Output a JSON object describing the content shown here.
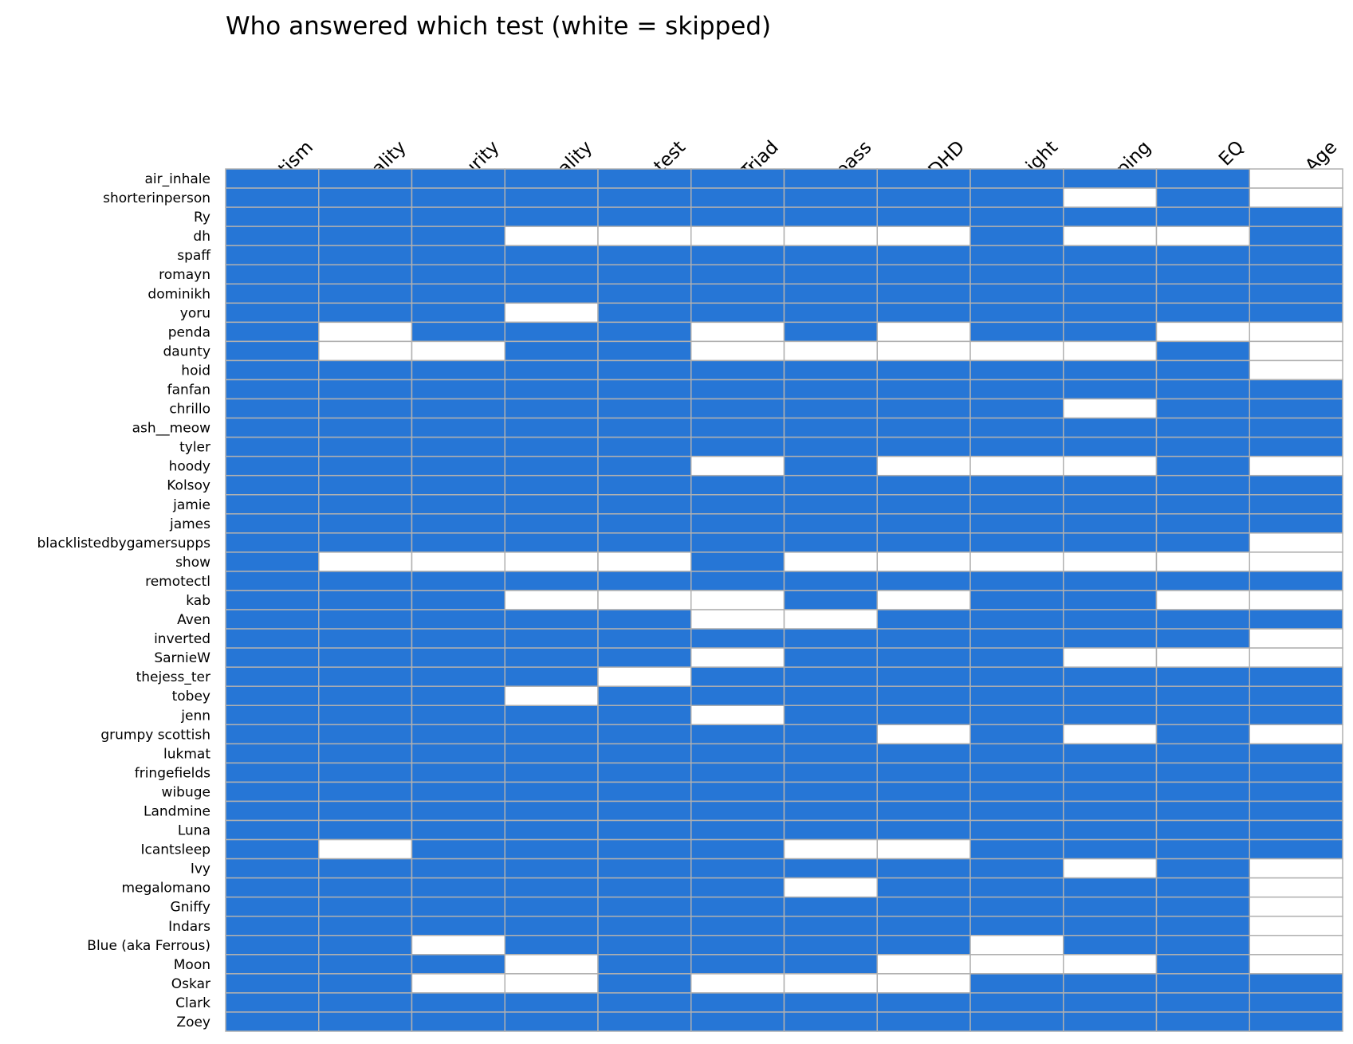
{
  "chart_data": {
    "type": "heatmap",
    "title": "Who answered which test (white = skipped)",
    "xlabel": "",
    "ylabel": "",
    "legend": "none",
    "grid": true,
    "colors": {
      "answered": "#2676d6",
      "skipped": "#ffffff",
      "grid": "#b0b0b0"
    },
    "columns": [
      "Autism",
      "Personality",
      "Rice purity",
      "Sexuality",
      "Racism test",
      "Dark Triad",
      "Pol. compass",
      "ADHD",
      "Height",
      "Typing",
      "EQ",
      "Age"
    ],
    "rows": [
      {
        "name": "air_inhale",
        "values": [
          1,
          1,
          1,
          1,
          1,
          1,
          1,
          1,
          1,
          1,
          1,
          0
        ]
      },
      {
        "name": "shorterinperson",
        "values": [
          1,
          1,
          1,
          1,
          1,
          1,
          1,
          1,
          1,
          0,
          1,
          0
        ]
      },
      {
        "name": "Ry",
        "values": [
          1,
          1,
          1,
          1,
          1,
          1,
          1,
          1,
          1,
          1,
          1,
          1
        ]
      },
      {
        "name": "dh",
        "values": [
          1,
          1,
          1,
          0,
          0,
          0,
          0,
          0,
          1,
          0,
          0,
          1
        ]
      },
      {
        "name": "spaff",
        "values": [
          1,
          1,
          1,
          1,
          1,
          1,
          1,
          1,
          1,
          1,
          1,
          1
        ]
      },
      {
        "name": "romayn",
        "values": [
          1,
          1,
          1,
          1,
          1,
          1,
          1,
          1,
          1,
          1,
          1,
          1
        ]
      },
      {
        "name": "dominikh",
        "values": [
          1,
          1,
          1,
          1,
          1,
          1,
          1,
          1,
          1,
          1,
          1,
          1
        ]
      },
      {
        "name": "yoru",
        "values": [
          1,
          1,
          1,
          0,
          1,
          1,
          1,
          1,
          1,
          1,
          1,
          1
        ]
      },
      {
        "name": "penda",
        "values": [
          1,
          0,
          1,
          1,
          1,
          0,
          1,
          0,
          1,
          1,
          0,
          0
        ]
      },
      {
        "name": "daunty",
        "values": [
          1,
          0,
          0,
          1,
          1,
          0,
          0,
          0,
          0,
          0,
          1,
          0
        ]
      },
      {
        "name": "hoid",
        "values": [
          1,
          1,
          1,
          1,
          1,
          1,
          1,
          1,
          1,
          1,
          1,
          0
        ]
      },
      {
        "name": "fanfan",
        "values": [
          1,
          1,
          1,
          1,
          1,
          1,
          1,
          1,
          1,
          1,
          1,
          1
        ]
      },
      {
        "name": "chrillo",
        "values": [
          1,
          1,
          1,
          1,
          1,
          1,
          1,
          1,
          1,
          0,
          1,
          1
        ]
      },
      {
        "name": "ash__meow",
        "values": [
          1,
          1,
          1,
          1,
          1,
          1,
          1,
          1,
          1,
          1,
          1,
          1
        ]
      },
      {
        "name": "tyler",
        "values": [
          1,
          1,
          1,
          1,
          1,
          1,
          1,
          1,
          1,
          1,
          1,
          1
        ]
      },
      {
        "name": "hoody",
        "values": [
          1,
          1,
          1,
          1,
          1,
          0,
          1,
          0,
          0,
          0,
          1,
          0
        ]
      },
      {
        "name": "Kolsoy",
        "values": [
          1,
          1,
          1,
          1,
          1,
          1,
          1,
          1,
          1,
          1,
          1,
          1
        ]
      },
      {
        "name": "jamie",
        "values": [
          1,
          1,
          1,
          1,
          1,
          1,
          1,
          1,
          1,
          1,
          1,
          1
        ]
      },
      {
        "name": "james",
        "values": [
          1,
          1,
          1,
          1,
          1,
          1,
          1,
          1,
          1,
          1,
          1,
          1
        ]
      },
      {
        "name": "blacklistedbygamersupps",
        "values": [
          1,
          1,
          1,
          1,
          1,
          1,
          1,
          1,
          1,
          1,
          1,
          0
        ]
      },
      {
        "name": "show",
        "values": [
          1,
          0,
          0,
          0,
          0,
          1,
          0,
          0,
          0,
          0,
          0,
          0
        ]
      },
      {
        "name": "remotectl",
        "values": [
          1,
          1,
          1,
          1,
          1,
          1,
          1,
          1,
          1,
          1,
          1,
          1
        ]
      },
      {
        "name": "kab",
        "values": [
          1,
          1,
          1,
          0,
          0,
          0,
          1,
          0,
          1,
          1,
          0,
          0
        ]
      },
      {
        "name": "Aven",
        "values": [
          1,
          1,
          1,
          1,
          1,
          0,
          0,
          1,
          1,
          1,
          1,
          1
        ]
      },
      {
        "name": "inverted",
        "values": [
          1,
          1,
          1,
          1,
          1,
          1,
          1,
          1,
          1,
          1,
          1,
          0
        ]
      },
      {
        "name": "SarnieW",
        "values": [
          1,
          1,
          1,
          1,
          1,
          0,
          1,
          1,
          1,
          0,
          0,
          0
        ]
      },
      {
        "name": "thejess_ter",
        "values": [
          1,
          1,
          1,
          1,
          0,
          1,
          1,
          1,
          1,
          1,
          1,
          1
        ]
      },
      {
        "name": "tobey",
        "values": [
          1,
          1,
          1,
          0,
          1,
          1,
          1,
          1,
          1,
          1,
          1,
          1
        ]
      },
      {
        "name": "jenn",
        "values": [
          1,
          1,
          1,
          1,
          1,
          0,
          1,
          1,
          1,
          1,
          1,
          1
        ]
      },
      {
        "name": "grumpy scottish",
        "values": [
          1,
          1,
          1,
          1,
          1,
          1,
          1,
          0,
          1,
          0,
          1,
          0
        ]
      },
      {
        "name": "lukmat",
        "values": [
          1,
          1,
          1,
          1,
          1,
          1,
          1,
          1,
          1,
          1,
          1,
          1
        ]
      },
      {
        "name": "fringefields",
        "values": [
          1,
          1,
          1,
          1,
          1,
          1,
          1,
          1,
          1,
          1,
          1,
          1
        ]
      },
      {
        "name": "wibuge",
        "values": [
          1,
          1,
          1,
          1,
          1,
          1,
          1,
          1,
          1,
          1,
          1,
          1
        ]
      },
      {
        "name": "Landmine",
        "values": [
          1,
          1,
          1,
          1,
          1,
          1,
          1,
          1,
          1,
          1,
          1,
          1
        ]
      },
      {
        "name": "Luna",
        "values": [
          1,
          1,
          1,
          1,
          1,
          1,
          1,
          1,
          1,
          1,
          1,
          1
        ]
      },
      {
        "name": "Icantsleep",
        "values": [
          1,
          0,
          1,
          1,
          1,
          1,
          0,
          0,
          1,
          1,
          1,
          1
        ]
      },
      {
        "name": "Ivy",
        "values": [
          1,
          1,
          1,
          1,
          1,
          1,
          1,
          1,
          1,
          0,
          1,
          0
        ]
      },
      {
        "name": "megalomano",
        "values": [
          1,
          1,
          1,
          1,
          1,
          1,
          0,
          1,
          1,
          1,
          1,
          0
        ]
      },
      {
        "name": "Gniffy",
        "values": [
          1,
          1,
          1,
          1,
          1,
          1,
          1,
          1,
          1,
          1,
          1,
          0
        ]
      },
      {
        "name": "Indars",
        "values": [
          1,
          1,
          1,
          1,
          1,
          1,
          1,
          1,
          1,
          1,
          1,
          0
        ]
      },
      {
        "name": "Blue (aka Ferrous)",
        "values": [
          1,
          1,
          0,
          1,
          1,
          1,
          1,
          1,
          0,
          1,
          1,
          0
        ]
      },
      {
        "name": "Moon",
        "values": [
          1,
          1,
          1,
          0,
          1,
          1,
          1,
          0,
          0,
          0,
          1,
          0
        ]
      },
      {
        "name": "Oskar",
        "values": [
          1,
          1,
          0,
          0,
          1,
          0,
          0,
          0,
          1,
          1,
          1,
          1
        ]
      },
      {
        "name": "Clark",
        "values": [
          1,
          1,
          1,
          1,
          1,
          1,
          1,
          1,
          1,
          1,
          1,
          1
        ]
      },
      {
        "name": "Zoey",
        "values": [
          1,
          1,
          1,
          1,
          1,
          1,
          1,
          1,
          1,
          1,
          1,
          1
        ]
      }
    ]
  }
}
